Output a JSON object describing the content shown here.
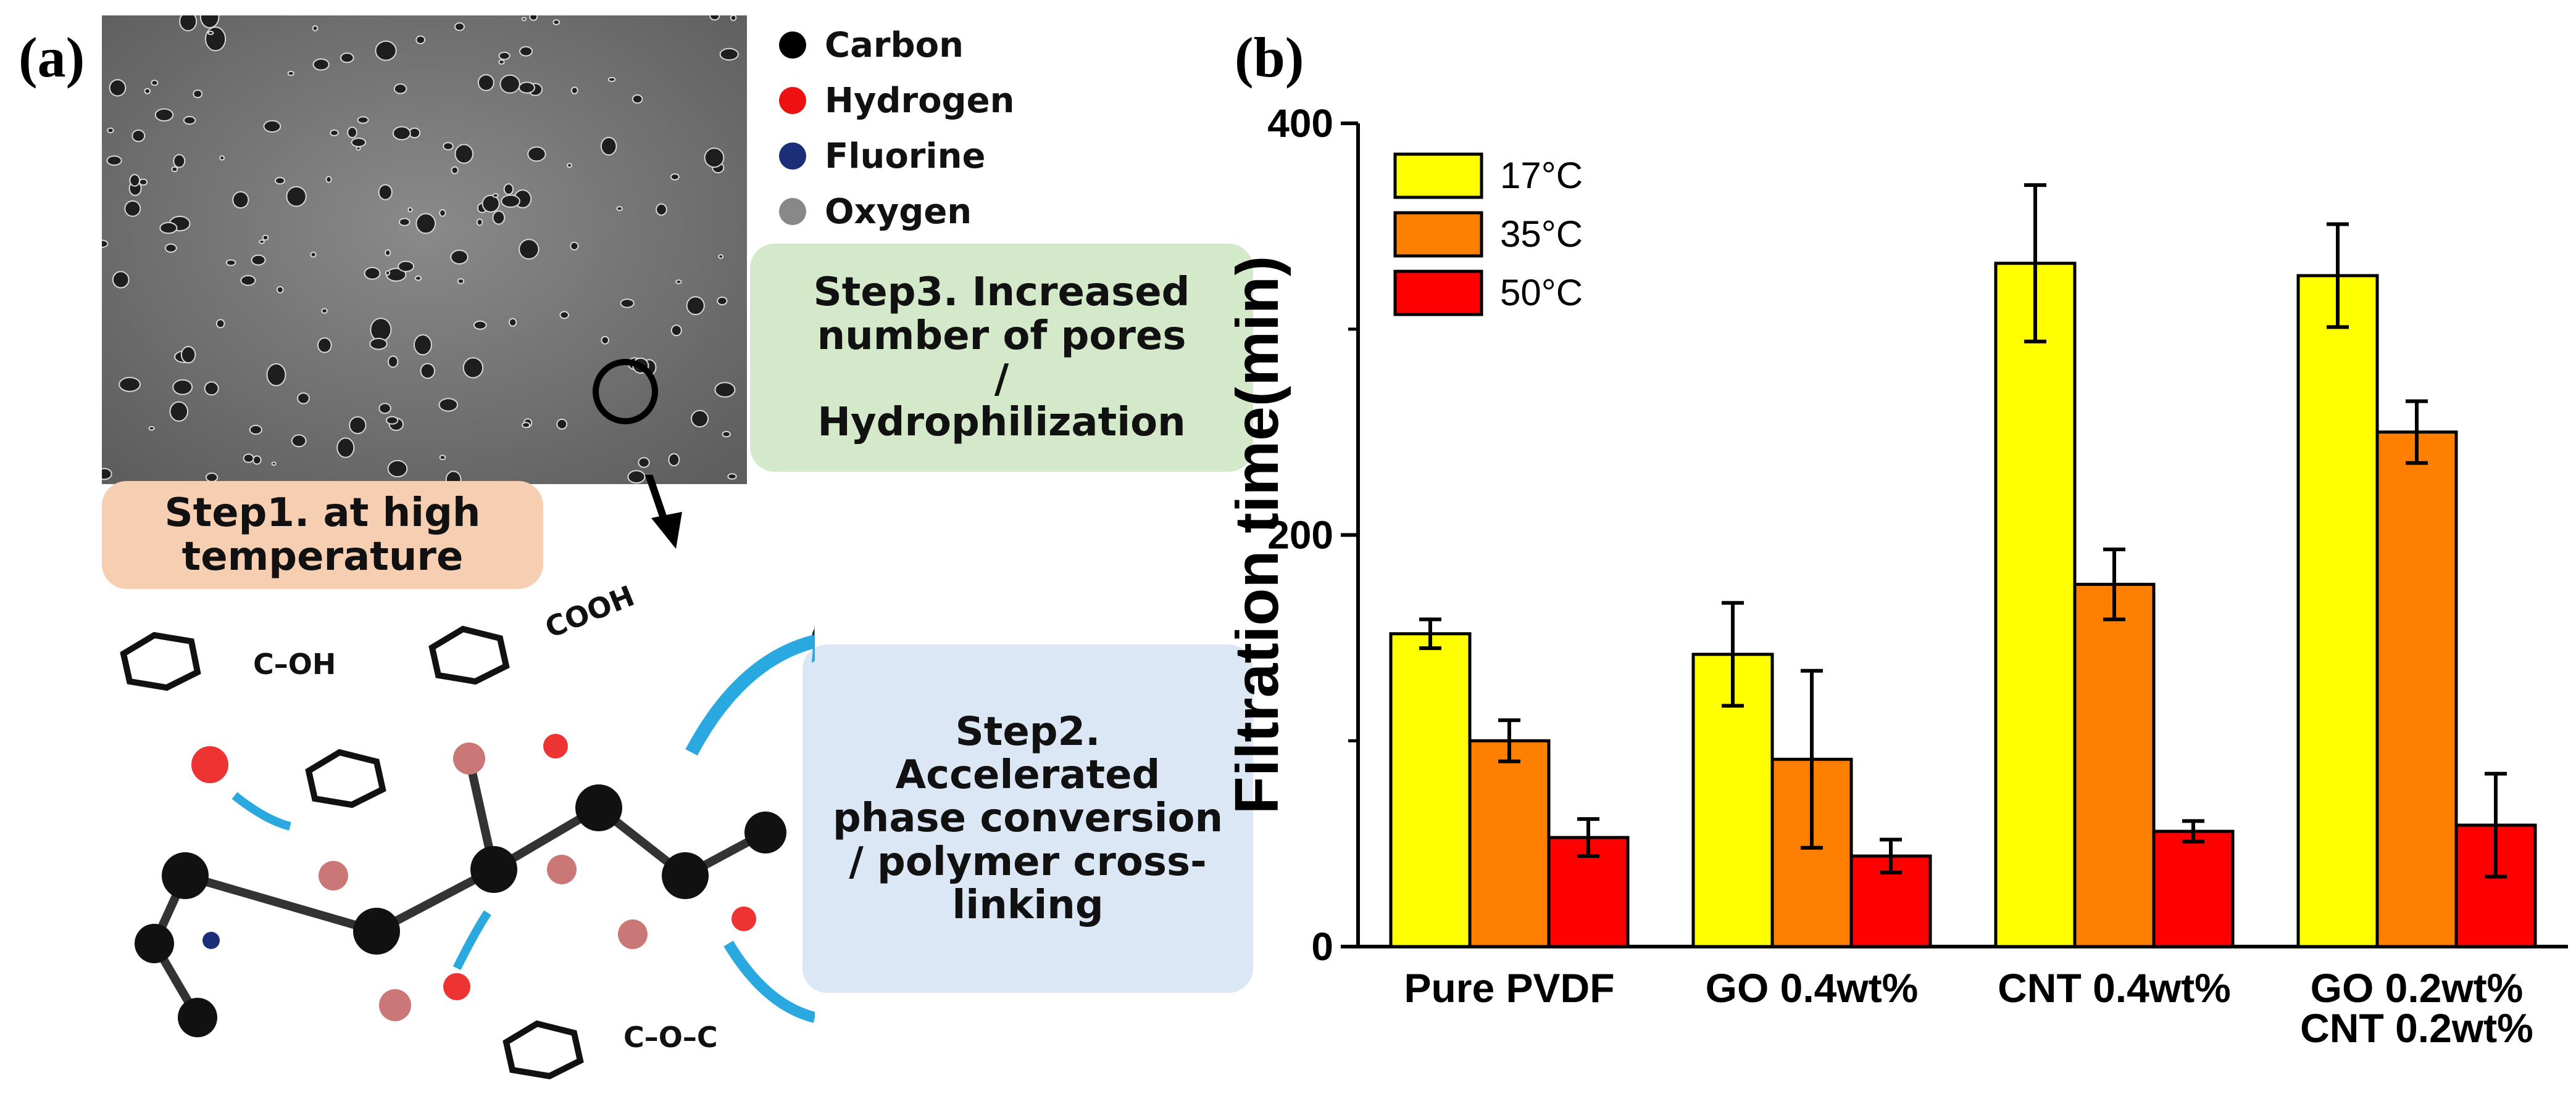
{
  "panel_a": {
    "label": "(a)",
    "legend": [
      {
        "name": "Carbon",
        "color": "#000000"
      },
      {
        "name": "Hydrogen",
        "color": "#ee1111"
      },
      {
        "name": "Fluorine",
        "color": "#1a2f77"
      },
      {
        "name": "Oxygen",
        "color": "#888888"
      }
    ],
    "step1": "Step1. at high temperature",
    "step2": "Step2. Accelerated phase conversion / polymer cross-linking",
    "step3": "Step3. Increased number of pores / Hydrophilization",
    "groups": [
      "C–OH",
      "COOH",
      "C–O–C"
    ]
  },
  "panel_b": {
    "label": "(b)"
  },
  "chart_data": {
    "type": "bar",
    "ylabel": "Filtration time(min)",
    "ylim": [
      0,
      400
    ],
    "yticks": [
      "0",
      "200",
      "400"
    ],
    "categories": [
      {
        "line1": "Pure  PVDF",
        "line2": ""
      },
      {
        "line1": "GO  0.4wt%",
        "line2": ""
      },
      {
        "line1": "CNT  0.4wt%",
        "line2": ""
      },
      {
        "line1": "GO  0.2wt%",
        "line2": "CNT  0.2wt%"
      }
    ],
    "series": [
      {
        "name": "17°C",
        "color": "#ffff00",
        "values": [
          152,
          142,
          332,
          326
        ],
        "errors": [
          7,
          25,
          38,
          25
        ]
      },
      {
        "name": "35°C",
        "color": "#ff8000",
        "values": [
          100,
          91,
          176,
          250
        ],
        "errors": [
          10,
          43,
          17,
          15
        ]
      },
      {
        "name": "50°C",
        "color": "#ff0000",
        "values": [
          53,
          44,
          56,
          59
        ],
        "errors": [
          9,
          8,
          5,
          25
        ]
      }
    ]
  }
}
